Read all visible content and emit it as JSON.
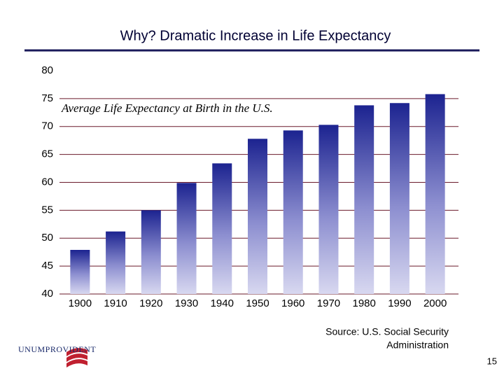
{
  "chart_data": {
    "type": "bar",
    "title": "Why?  Dramatic Increase in Life Expectancy",
    "subtitle": "Average Life Expectancy at Birth in the U.S.",
    "categories": [
      "1900",
      "1910",
      "1920",
      "1930",
      "1940",
      "1950",
      "1960",
      "1970",
      "1980",
      "1990",
      "2000"
    ],
    "values": [
      47.9,
      51.2,
      55.0,
      59.9,
      63.4,
      67.8,
      69.3,
      70.3,
      73.8,
      74.2,
      75.8
    ],
    "ylim": [
      40,
      80
    ],
    "yticks": [
      40,
      45,
      50,
      55,
      60,
      65,
      70,
      75,
      80
    ],
    "grid": true,
    "source": [
      "Source: U.S. Social Security",
      "Administration"
    ],
    "logo": "UNUMPROVIDENT",
    "page_number": "15"
  }
}
